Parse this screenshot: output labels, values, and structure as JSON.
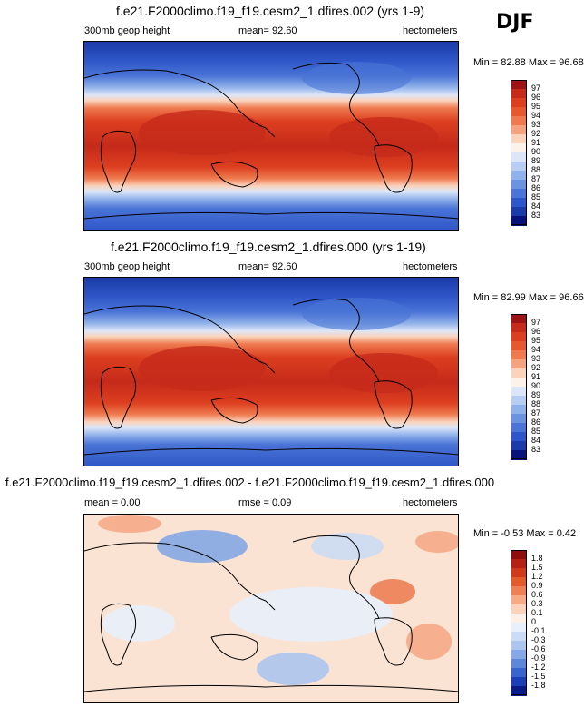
{
  "season": "DJF",
  "chart_data": [
    {
      "type": "heatmap",
      "title": "f.e21.F2000climo.f19_f19.cesm2_1.dfires.002 (yrs 1-9)",
      "variable": "300mb geop height",
      "mean_text": "mean=  92.60",
      "units": "hectometers",
      "minmax_text": "Min = 82.88 Max = 96.68",
      "min": 82.88,
      "max": 96.68,
      "colorbar_labels": [
        "97",
        "96",
        "95",
        "94",
        "93",
        "92",
        "91",
        "90",
        "89",
        "88",
        "87",
        "86",
        "85",
        "84",
        "83"
      ],
      "colorbar_colors": [
        "#9e1414",
        "#c52a1a",
        "#dc3f1f",
        "#e8582e",
        "#ef7a4f",
        "#f4a37e",
        "#fad3bc",
        "#fdf2ea",
        "#dce6f8",
        "#b7cdf2",
        "#90b1ea",
        "#6b93e0",
        "#4a74d6",
        "#2f56c8",
        "#1a3ba8",
        "#08127a"
      ]
    },
    {
      "type": "heatmap",
      "title": "f.e21.F2000climo.f19_f19.cesm2_1.dfires.000 (yrs 1-19)",
      "variable": "300mb geop height",
      "mean_text": "mean=  92.60",
      "units": "hectometers",
      "minmax_text": "Min = 82.99 Max = 96.66",
      "min": 82.99,
      "max": 96.66,
      "colorbar_labels": [
        "97",
        "96",
        "95",
        "94",
        "93",
        "92",
        "91",
        "90",
        "89",
        "88",
        "87",
        "86",
        "85",
        "84",
        "83"
      ],
      "colorbar_colors": [
        "#9e1414",
        "#c52a1a",
        "#dc3f1f",
        "#e8582e",
        "#ef7a4f",
        "#f4a37e",
        "#fad3bc",
        "#fdf2ea",
        "#dce6f8",
        "#b7cdf2",
        "#90b1ea",
        "#6b93e0",
        "#4a74d6",
        "#2f56c8",
        "#1a3ba8",
        "#08127a"
      ]
    },
    {
      "type": "heatmap",
      "title": "f.e21.F2000climo.f19_f19.cesm2_1.dfires.002 - f.e21.F2000climo.f19_f19.cesm2_1.dfires.000",
      "mean_text": "mean =  0.00",
      "rmse_text": "rmse =  0.09",
      "units": "hectometers",
      "minmax_text": "Min = -0.53 Max =  0.42",
      "min": -0.53,
      "max": 0.42,
      "colorbar_labels": [
        "1.8",
        "1.5",
        "1.2",
        "0.9",
        "0.6",
        "0.3",
        "0.1",
        "0",
        "-0.1",
        "-0.3",
        "-0.6",
        "-0.9",
        "-1.2",
        "-1.5",
        "-1.8"
      ],
      "colorbar_colors": [
        "#8e0d0d",
        "#b52114",
        "#d1391c",
        "#e35a2c",
        "#ee8055",
        "#f6aa88",
        "#fbd3bd",
        "#fdf0e8",
        "#e8f0fb",
        "#ccdcf4",
        "#adc6ee",
        "#86a9e5",
        "#5e87da",
        "#3a64cd",
        "#1d3fb5",
        "#0b1a86"
      ]
    }
  ]
}
